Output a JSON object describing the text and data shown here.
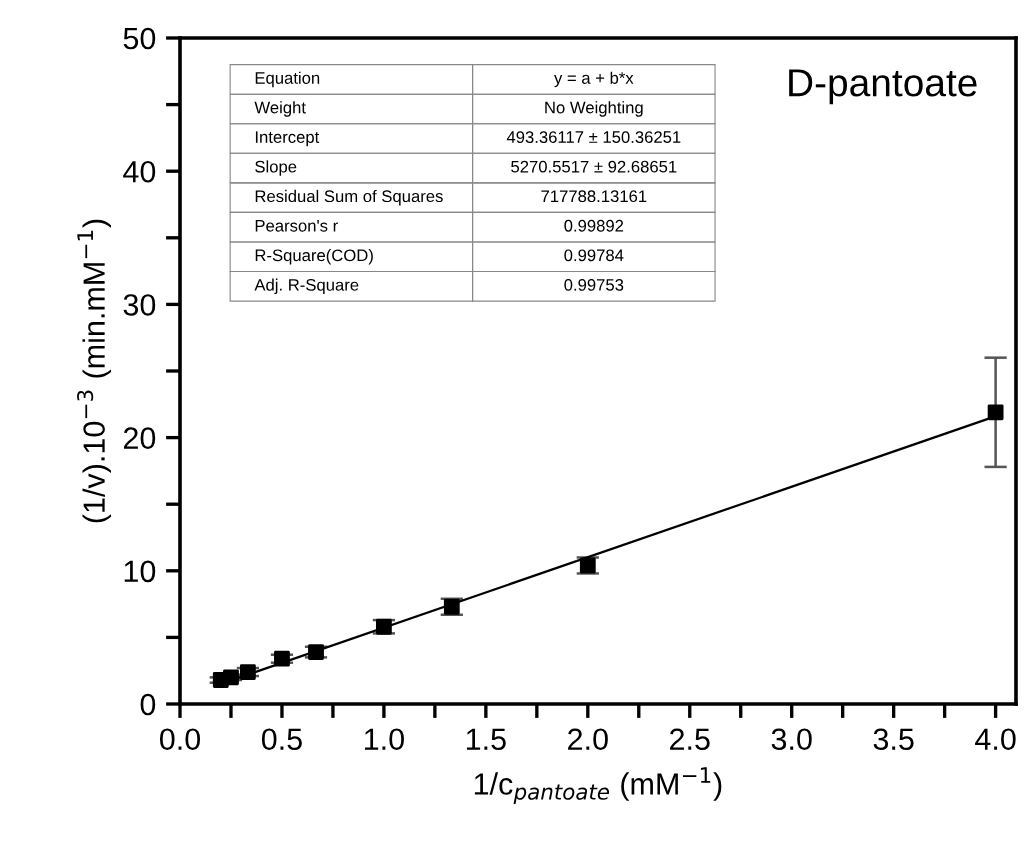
{
  "chart_data": {
    "type": "scatter",
    "title": "D-pantoate",
    "xlabel": "1/c$_{pantoate}$ (mM$^{−1}$)",
    "ylabel": "(1/v).10$^{−3}$ (min.mM$^{−1}$)",
    "x": [
      0.2,
      0.25,
      0.333,
      0.5,
      0.667,
      1.0,
      1.333,
      2.0,
      4.0
    ],
    "series": [
      {
        "color": "#000000",
        "marker": "square",
        "values": [
          1.8,
          2.0,
          2.4,
          3.4,
          3.9,
          5.8,
          7.3,
          10.4,
          21.9
        ],
        "errors": [
          0.2,
          0.2,
          0.3,
          0.3,
          0.4,
          0.5,
          0.6,
          0.6,
          [
            17.8,
            26.0
          ]
        ]
      },
      {
        "type": "line",
        "color": "#000000",
        "line_style": "solid",
        "x": [
          0.2,
          4.0
        ],
        "values": [
          1.5,
          21.6
        ]
      }
    ],
    "xlim": [
      0,
      4.1
    ],
    "ylim": [
      0,
      50
    ],
    "xticks": [
      {
        "value": 0,
        "label": "0.0"
      },
      {
        "value": 0.25,
        "label": null
      },
      0.5,
      {
        "value": 0.75,
        "label": null
      },
      {
        "value": 1,
        "label": "1.0"
      },
      {
        "value": 1.25,
        "label": null
      },
      1.5,
      {
        "value": 1.75,
        "label": null
      },
      {
        "value": 2,
        "label": "2.0"
      },
      {
        "value": 2.25,
        "label": null
      },
      2.5,
      {
        "value": 2.75,
        "label": null
      },
      {
        "value": 3,
        "label": "3.0"
      },
      {
        "value": 3.25,
        "label": null
      },
      3.5,
      {
        "value": 3.75,
        "label": null
      },
      {
        "value": 4,
        "label": "4.0"
      }
    ],
    "yticks": [
      0,
      {
        "value": 5,
        "label": null
      },
      10,
      {
        "value": 15,
        "label": null
      },
      20,
      {
        "value": 25,
        "label": null
      },
      30,
      {
        "value": 35,
        "label": null
      },
      40,
      {
        "value": 45,
        "label": null
      },
      50
    ],
    "grid": false,
    "legend": false,
    "annotations": [
      "Equation",
      "y = a + b*x",
      "Weight",
      "No Weighting",
      "Intercept",
      "493.36117 ± 150.36251",
      "Slope",
      "5270.5517 ± 92.68651",
      "Residual Sum of Squares",
      "717788.13161",
      "Pearson's r",
      "0.99892",
      "R-Square(COD)",
      "0.99784",
      "Adj. R-Square",
      "0.99753"
    ]
  }
}
